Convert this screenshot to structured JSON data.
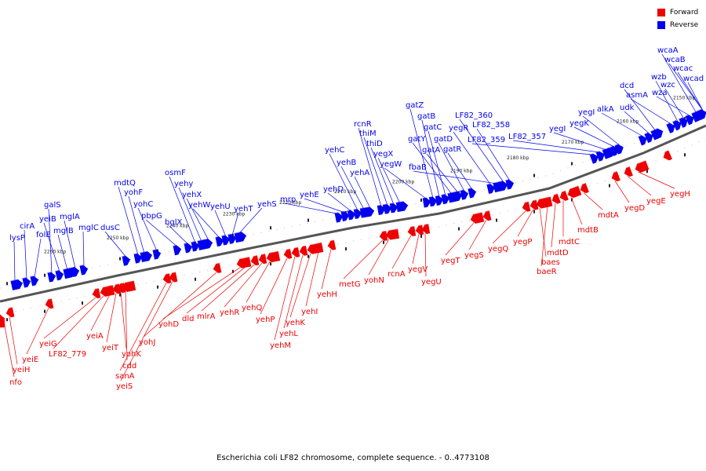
{
  "legend": [
    {
      "label": "Forward",
      "color": "#ee0000"
    },
    {
      "label": "Reverse",
      "color": "#0000ee"
    }
  ],
  "caption": "Escherichia coli LF82 chromosome, complete sequence. - 0..4773108",
  "colors": {
    "forward": "#ee0000",
    "reverse": "#0000ee",
    "axis": "#666666"
  },
  "ticks": [
    "2260 kbp",
    "2250 kbp",
    "2240 kbp",
    "2230 kbp",
    "2220 kbp",
    "2210 kbp",
    "2200 kbp",
    "2190 kbp",
    "2180 kbp",
    "2170 kbp",
    "2160 kbp",
    "2150 kbp"
  ],
  "reverse_labels": [
    "lysP",
    "cirA",
    "folE",
    "galS",
    "yeiB",
    "mglB",
    "mglA",
    "mglC",
    "dusC",
    "mdtQ",
    "yohF",
    "yohC",
    "pbpG",
    "bglX",
    "osmF",
    "yehy",
    "yehX",
    "yehW",
    "yehU",
    "yehT",
    "yehS",
    "mrp",
    "yehE",
    "yehD",
    "yehC",
    "yehB",
    "yehA",
    "rcnR",
    "thiM",
    "thiD",
    "yegX",
    "yegW",
    "gatZ",
    "gatB",
    "gatC",
    "gatY",
    "gatA",
    "gatD",
    "gatR",
    "yegR",
    "fbaB",
    "LF82_360",
    "LF82_358",
    "LF82_359",
    "LF82_357",
    "yegI",
    "yegK",
    "yegI",
    "alkA",
    "udk",
    "dcd",
    "asmA",
    "wzb",
    "wzc",
    "wza",
    "wcaA",
    "wcaB",
    "wcac",
    "wcad"
  ],
  "forward_labels": [
    "nfo",
    "yeiH",
    "yeiE",
    "yeiG",
    "LF82_779",
    "yeiA",
    "yeiT",
    "yohK",
    "cdd",
    "sanA",
    "yeiS",
    "yohJ",
    "yohD",
    "dld",
    "mlrA",
    "yehR",
    "yehQ",
    "yehP",
    "yehM",
    "yehL",
    "yehK",
    "yehI",
    "yehH",
    "metG",
    "yohN",
    "rcnA",
    "yegV",
    "yegU",
    "yegT",
    "yegS",
    "yegQ",
    "yegP",
    "baes",
    "baeR",
    "mdtD",
    "mdtC",
    "mdtB",
    "mdtA",
    "yegD",
    "yegE",
    "yegH"
  ]
}
